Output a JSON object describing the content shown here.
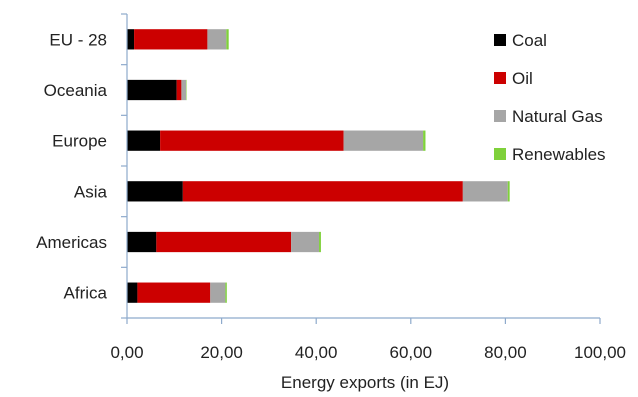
{
  "chart_data": {
    "type": "bar",
    "orientation": "horizontal",
    "stacked": true,
    "categories": [
      "EU - 28",
      "Oceania",
      "Europe",
      "Asia",
      "Americas",
      "Africa"
    ],
    "series": [
      {
        "name": "Coal",
        "color": "#000000",
        "values": [
          1.5,
          10.5,
          7.0,
          11.8,
          6.2,
          2.2
        ]
      },
      {
        "name": "Oil",
        "color": "#cc0000",
        "values": [
          15.5,
          1.0,
          38.8,
          59.2,
          28.5,
          15.4
        ]
      },
      {
        "name": "Natural Gas",
        "color": "#a6a6a6",
        "values": [
          4.0,
          1.0,
          16.8,
          9.5,
          5.9,
          3.2
        ]
      },
      {
        "name": "Renewables",
        "color": "#7fd13b",
        "values": [
          0.5,
          0.1,
          0.5,
          0.4,
          0.4,
          0.3
        ]
      }
    ],
    "xlabel": "Energy exports (in EJ)",
    "xlim": [
      0,
      100
    ],
    "xticks": [
      "0,00",
      "20,00",
      "40,00",
      "60,00",
      "80,00",
      "100,00"
    ],
    "grid": false,
    "legend_position": "right"
  }
}
